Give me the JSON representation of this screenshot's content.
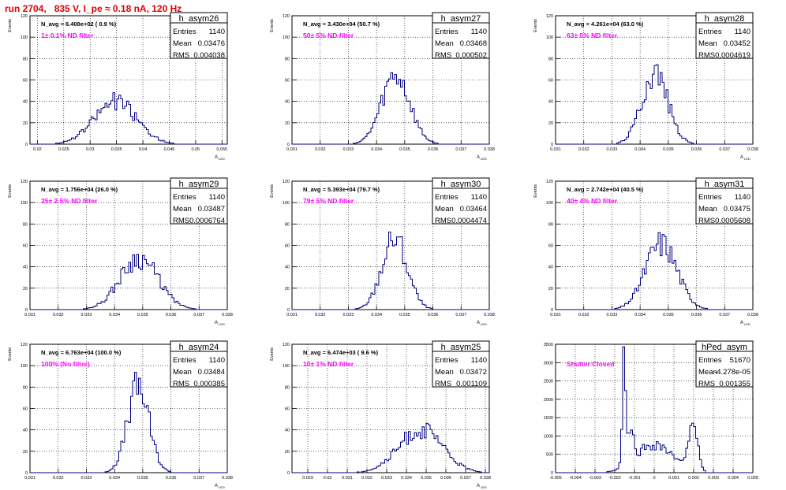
{
  "run_title": "run 2704,   835 V, I_pe ≈ 0.18 nA, 120 Hz",
  "colors": {
    "histogram": "#000080",
    "annotation": "#ff00ff",
    "title": "#e00000",
    "grid": "#000000"
  },
  "chart_data": [
    {
      "type": "histogram",
      "title": "h_asym26",
      "stats": [
        {
          "label": "Entries",
          "value": "1140"
        },
        {
          "label": "Mean",
          "value": "0.03476"
        },
        {
          "label": "RMS",
          "value": "0.004038"
        }
      ],
      "navg": "N_avg = 6.408e+02 ( 0.9 %)",
      "note": "1± 0.1% ND filter",
      "ylabel": "Events",
      "xlabel": "A",
      "xlabel_sub": "LED",
      "xlim": [
        0.0186,
        0.056
      ],
      "ylim": [
        0,
        120
      ],
      "xticks": [
        {
          "v": 0.02,
          "t": "0.02"
        },
        {
          "v": 0.025,
          "t": "0.025"
        },
        {
          "v": 0.03,
          "t": "0.03"
        },
        {
          "v": 0.035,
          "t": "0.035"
        },
        {
          "v": 0.04,
          "t": "0.04"
        },
        {
          "v": 0.045,
          "t": "0.045"
        },
        {
          "v": 0.05,
          "t": "0.05"
        },
        {
          "v": 0.055,
          "t": "0.055"
        }
      ],
      "yticks": [
        0,
        20,
        40,
        60,
        80,
        100,
        120
      ],
      "peaks": [
        {
          "mu": 0.0348,
          "sigma": 0.004,
          "amp": 40
        }
      ],
      "seed": 26
    },
    {
      "type": "histogram",
      "title": "h_asym27",
      "stats": [
        {
          "label": "Entries",
          "value": "1140"
        },
        {
          "label": "Mean",
          "value": "0.03468"
        },
        {
          "label": "RMS",
          "value": "0.000502"
        }
      ],
      "navg": "N_avg = 3.430e+04 (50.7 %)",
      "note": "50± 5% ND filter",
      "ylabel": "Events",
      "xlabel": "A",
      "xlabel_sub": "LED",
      "xlim": [
        0.031,
        0.038
      ],
      "ylim": [
        0,
        120
      ],
      "xticks": [
        {
          "v": 0.031,
          "t": "0.031"
        },
        {
          "v": 0.032,
          "t": "0.032"
        },
        {
          "v": 0.033,
          "t": "0.033"
        },
        {
          "v": 0.034,
          "t": "0.034"
        },
        {
          "v": 0.035,
          "t": "0.035"
        },
        {
          "v": 0.036,
          "t": "0.036"
        },
        {
          "v": 0.037,
          "t": "0.037"
        },
        {
          "v": 0.038,
          "t": "0.038"
        }
      ],
      "yticks": [
        0,
        20,
        40,
        60,
        80,
        100,
        120
      ],
      "peaks": [
        {
          "mu": 0.03468,
          "sigma": 0.0005,
          "amp": 62
        }
      ],
      "seed": 27
    },
    {
      "type": "histogram",
      "title": "h_asym28",
      "stats": [
        {
          "label": "Entries",
          "value": "1140"
        },
        {
          "label": "Mean",
          "value": "0.03452"
        },
        {
          "label": "RMS",
          "value": "0.0004619"
        }
      ],
      "navg": "N_avg = 4.261e+04 (63.0 %)",
      "note": "63± 5% ND filter",
      "ylabel": "Events",
      "xlabel": "A",
      "xlabel_sub": "LED",
      "xlim": [
        0.031,
        0.038
      ],
      "ylim": [
        0,
        120
      ],
      "xticks": [
        {
          "v": 0.031,
          "t": "0.031"
        },
        {
          "v": 0.032,
          "t": "0.032"
        },
        {
          "v": 0.033,
          "t": "0.033"
        },
        {
          "v": 0.034,
          "t": "0.034"
        },
        {
          "v": 0.035,
          "t": "0.035"
        },
        {
          "v": 0.036,
          "t": "0.036"
        },
        {
          "v": 0.037,
          "t": "0.037"
        },
        {
          "v": 0.038,
          "t": "0.038"
        }
      ],
      "yticks": [
        0,
        20,
        40,
        60,
        80,
        100,
        120
      ],
      "peaks": [
        {
          "mu": 0.03452,
          "sigma": 0.00046,
          "amp": 68
        }
      ],
      "seed": 28
    },
    {
      "type": "histogram",
      "title": "h_asym29",
      "stats": [
        {
          "label": "Entries",
          "value": "1140"
        },
        {
          "label": "Mean",
          "value": "0.03487"
        },
        {
          "label": "RMS",
          "value": "0.0006764"
        }
      ],
      "navg": "N_avg = 1.756e+04 (26.0 %)",
      "note": "25± 2.5% ND filter",
      "ylabel": "Events",
      "xlabel": "A",
      "xlabel_sub": "LED",
      "xlim": [
        0.031,
        0.038
      ],
      "ylim": [
        0,
        120
      ],
      "xticks": [
        {
          "v": 0.031,
          "t": "0.031"
        },
        {
          "v": 0.032,
          "t": "0.032"
        },
        {
          "v": 0.033,
          "t": "0.033"
        },
        {
          "v": 0.034,
          "t": "0.034"
        },
        {
          "v": 0.035,
          "t": "0.035"
        },
        {
          "v": 0.036,
          "t": "0.036"
        },
        {
          "v": 0.037,
          "t": "0.037"
        },
        {
          "v": 0.038,
          "t": "0.038"
        }
      ],
      "yticks": [
        0,
        20,
        40,
        60,
        80,
        100,
        120
      ],
      "peaks": [
        {
          "mu": 0.03487,
          "sigma": 0.00068,
          "amp": 48
        }
      ],
      "seed": 29
    },
    {
      "type": "histogram",
      "title": "h_asym30",
      "stats": [
        {
          "label": "Entries",
          "value": "1140"
        },
        {
          "label": "Mean",
          "value": "0.03464"
        },
        {
          "label": "RMS",
          "value": "0.0004474"
        }
      ],
      "navg": "N_avg = 5.393e+04 (79.7 %)",
      "note": "79± 5% ND filter",
      "ylabel": "Events",
      "xlabel": "A",
      "xlabel_sub": "LED",
      "xlim": [
        0.031,
        0.038
      ],
      "ylim": [
        0,
        120
      ],
      "xticks": [
        {
          "v": 0.031,
          "t": "0.031"
        },
        {
          "v": 0.032,
          "t": "0.032"
        },
        {
          "v": 0.033,
          "t": "0.033"
        },
        {
          "v": 0.034,
          "t": "0.034"
        },
        {
          "v": 0.035,
          "t": "0.035"
        },
        {
          "v": 0.036,
          "t": "0.036"
        },
        {
          "v": 0.037,
          "t": "0.037"
        },
        {
          "v": 0.038,
          "t": "0.038"
        }
      ],
      "yticks": [
        0,
        20,
        40,
        60,
        80,
        100,
        120
      ],
      "peaks": [
        {
          "mu": 0.03464,
          "sigma": 0.00045,
          "amp": 66
        }
      ],
      "seed": 30
    },
    {
      "type": "histogram",
      "title": "h_asym31",
      "stats": [
        {
          "label": "Entries",
          "value": "1140"
        },
        {
          "label": "Mean",
          "value": "0.03475"
        },
        {
          "label": "RMS",
          "value": "0.0005608"
        }
      ],
      "navg": "N_avg = 2.742e+04 (40.5 %)",
      "note": "40± 4% ND filter",
      "ylabel": "Events",
      "xlabel": "A",
      "xlabel_sub": "LED",
      "xlim": [
        0.031,
        0.038
      ],
      "ylim": [
        0,
        120
      ],
      "xticks": [
        {
          "v": 0.031,
          "t": "0.031"
        },
        {
          "v": 0.032,
          "t": "0.032"
        },
        {
          "v": 0.033,
          "t": "0.033"
        },
        {
          "v": 0.034,
          "t": "0.034"
        },
        {
          "v": 0.035,
          "t": "0.035"
        },
        {
          "v": 0.036,
          "t": "0.036"
        },
        {
          "v": 0.037,
          "t": "0.037"
        },
        {
          "v": 0.038,
          "t": "0.038"
        }
      ],
      "yticks": [
        0,
        20,
        40,
        60,
        80,
        100,
        120
      ],
      "peaks": [
        {
          "mu": 0.03475,
          "sigma": 0.00056,
          "amp": 62
        }
      ],
      "seed": 31
    },
    {
      "type": "histogram",
      "title": "h_asym24",
      "stats": [
        {
          "label": "Entries",
          "value": "1140"
        },
        {
          "label": "Mean",
          "value": "0.03484"
        },
        {
          "label": "RMS",
          "value": "0.000385"
        }
      ],
      "navg": "N_avg = 6.763e+04 (100.0 %)",
      "note": "100% (No filter)",
      "ylabel": "Events",
      "xlabel": "A",
      "xlabel_sub": "LED",
      "xlim": [
        0.031,
        0.038
      ],
      "ylim": [
        0,
        120
      ],
      "xticks": [
        {
          "v": 0.031,
          "t": "0.031"
        },
        {
          "v": 0.032,
          "t": "0.032"
        },
        {
          "v": 0.033,
          "t": "0.033"
        },
        {
          "v": 0.034,
          "t": "0.034"
        },
        {
          "v": 0.035,
          "t": "0.035"
        },
        {
          "v": 0.036,
          "t": "0.036"
        },
        {
          "v": 0.037,
          "t": "0.037"
        },
        {
          "v": 0.038,
          "t": "0.038"
        }
      ],
      "yticks": [
        0,
        20,
        40,
        60,
        80,
        100,
        120
      ],
      "peaks": [
        {
          "mu": 0.03484,
          "sigma": 0.00038,
          "amp": 80
        }
      ],
      "seed": 24
    },
    {
      "type": "histogram",
      "title": "h_asym25",
      "stats": [
        {
          "label": "Entries",
          "value": "1140"
        },
        {
          "label": "Mean",
          "value": "0.03472"
        },
        {
          "label": "RMS",
          "value": "0.001109"
        }
      ],
      "navg": "N_avg = 6.474e+03 ( 9.6 %)",
      "note": "10± 1% ND filter",
      "ylabel": "Events",
      "xlabel": "A",
      "xlabel_sub": "LED",
      "xlim": [
        0.0282,
        0.0382
      ],
      "ylim": [
        0,
        120
      ],
      "xticks": [
        {
          "v": 0.029,
          "t": "0.029"
        },
        {
          "v": 0.03,
          "t": "0.03"
        },
        {
          "v": 0.031,
          "t": "0.031"
        },
        {
          "v": 0.032,
          "t": "0.032"
        },
        {
          "v": 0.033,
          "t": "0.033"
        },
        {
          "v": 0.034,
          "t": "0.034"
        },
        {
          "v": 0.035,
          "t": "0.035"
        },
        {
          "v": 0.036,
          "t": "0.036"
        },
        {
          "v": 0.037,
          "t": "0.037"
        },
        {
          "v": 0.038,
          "t": "0.038"
        }
      ],
      "yticks": [
        0,
        20,
        40,
        60,
        80,
        100,
        120
      ],
      "peaks": [
        {
          "mu": 0.03472,
          "sigma": 0.0011,
          "amp": 40
        }
      ],
      "seed": 25
    },
    {
      "type": "histogram",
      "title": "hPed_asym",
      "stats": [
        {
          "label": "Entries",
          "value": "51670"
        },
        {
          "label": "Mean",
          "value": "-4.278e-05"
        },
        {
          "label": "RMS",
          "value": "0.001355"
        }
      ],
      "navg": "",
      "note": "Shutter Closed",
      "ylabel": "",
      "xlabel": "",
      "xlabel_sub": "",
      "xlim": [
        -0.005,
        0.005
      ],
      "ylim": [
        0,
        3500
      ],
      "xticks": [
        {
          "v": -0.005,
          "t": "-0.005"
        },
        {
          "v": -0.004,
          "t": "-0.004"
        },
        {
          "v": -0.003,
          "t": "-0.003"
        },
        {
          "v": -0.002,
          "t": "-0.002"
        },
        {
          "v": -0.001,
          "t": "-0.001"
        },
        {
          "v": 0,
          "t": "0"
        },
        {
          "v": 0.001,
          "t": "0.001"
        },
        {
          "v": 0.002,
          "t": "0.002"
        },
        {
          "v": 0.003,
          "t": "0.003"
        },
        {
          "v": 0.004,
          "t": "0.004"
        },
        {
          "v": 0.005,
          "t": "0.005"
        }
      ],
      "yticks": [
        0,
        500,
        1000,
        1500,
        2000,
        2500,
        3000,
        3500
      ],
      "peaks": [
        {
          "mu": -0.00155,
          "sigma": 8e-05,
          "amp": 2600
        },
        {
          "mu": -0.00125,
          "sigma": 0.00018,
          "amp": 900
        },
        {
          "mu": 0.0,
          "sigma": 0.0009,
          "amp": 780
        },
        {
          "mu": 0.00195,
          "sigma": 0.00022,
          "amp": 1450
        }
      ],
      "seed": 99
    }
  ]
}
